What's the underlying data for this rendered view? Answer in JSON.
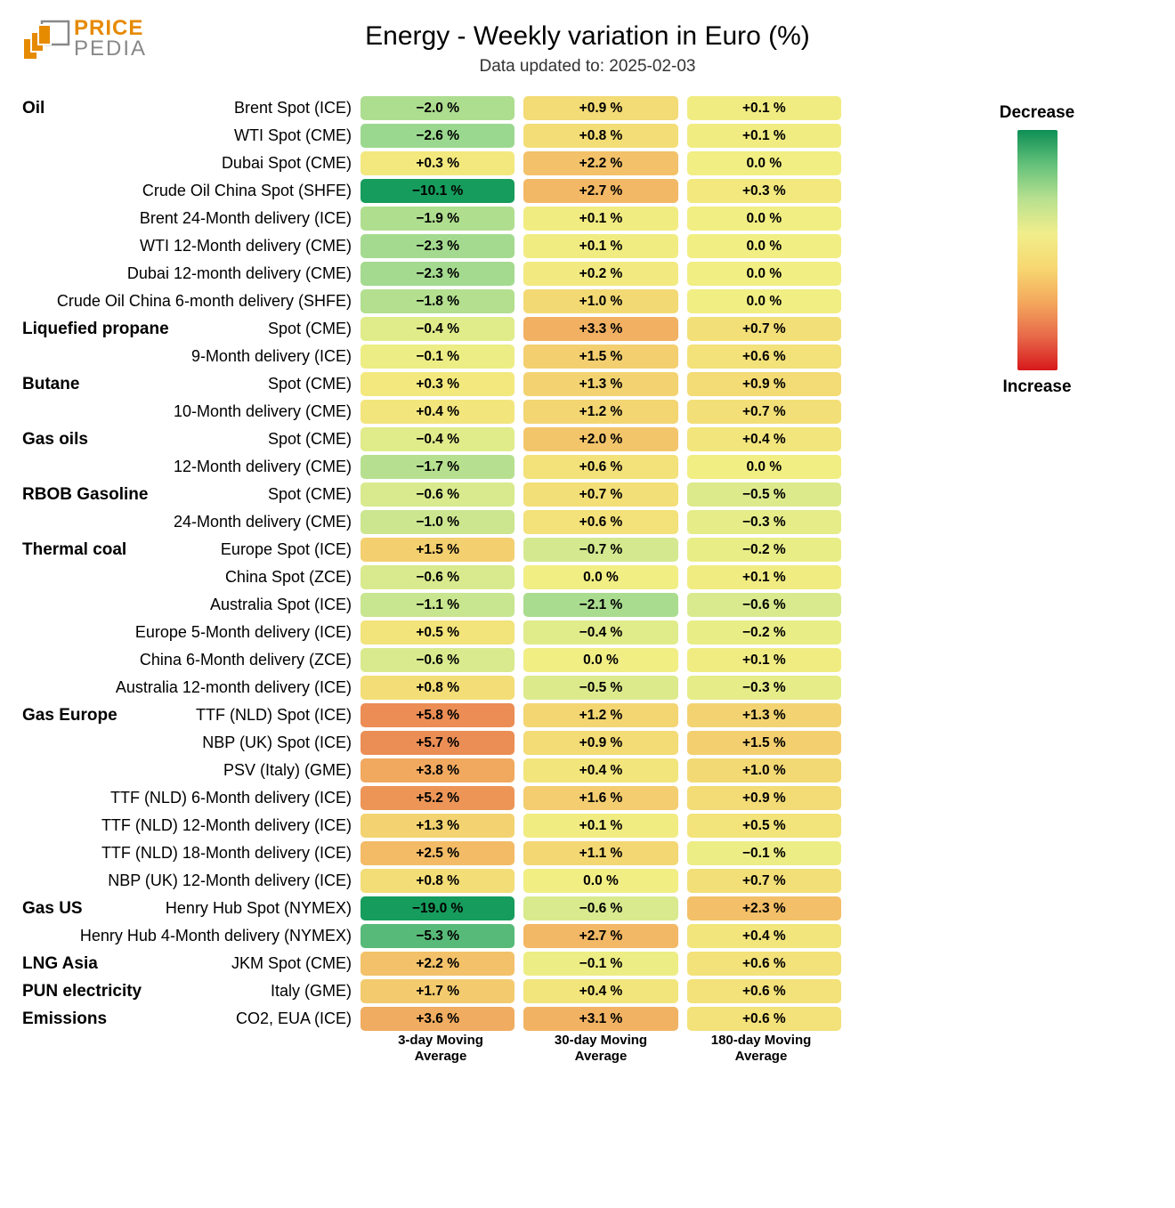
{
  "logo": {
    "price": "PRICE",
    "pedia": "PEDIA"
  },
  "title": "Energy - Weekly variation in Euro (%)",
  "subtitle": "Data updated to: 2025-02-03",
  "columns": [
    {
      "line1": "3-day Moving",
      "line2": "Average"
    },
    {
      "line1": "30-day Moving",
      "line2": "Average"
    },
    {
      "line1": "180-day Moving",
      "line2": "Average"
    }
  ],
  "legend": {
    "top": "Decrease",
    "bottom": "Increase",
    "gradient_stops": [
      "#0e8f55",
      "#64c17a",
      "#b7e08f",
      "#f0ee8b",
      "#f7d871",
      "#f4a95d",
      "#e86a4a",
      "#d7191c"
    ]
  },
  "colors": {
    "scale_min_value": -19.0,
    "scale_mid_value": 0.0,
    "scale_max_value": 6.0,
    "neg_strong": "#169c5c",
    "neg_mid": "#8fd48f",
    "neg_weak": "#d4e98f",
    "zero": "#f1ee83",
    "pos_weak": "#f3df77",
    "pos_mid": "#f3bb66",
    "pos_strong": "#ea8a53"
  },
  "groups": [
    {
      "name": "Oil",
      "rows": [
        {
          "label": "Brent Spot (ICE)",
          "v": [
            -2.0,
            0.9,
            0.1
          ]
        },
        {
          "label": "WTI Spot (CME)",
          "v": [
            -2.6,
            0.8,
            0.1
          ]
        },
        {
          "label": "Dubai Spot (CME)",
          "v": [
            0.3,
            2.2,
            0.0
          ]
        },
        {
          "label": "Crude Oil China Spot (SHFE)",
          "v": [
            -10.1,
            2.7,
            0.3
          ]
        },
        {
          "label": "Brent 24-Month delivery (ICE)",
          "v": [
            -1.9,
            0.1,
            0.0
          ]
        },
        {
          "label": "WTI 12-Month delivery (CME)",
          "v": [
            -2.3,
            0.1,
            0.0
          ]
        },
        {
          "label": "Dubai 12-month delivery (CME)",
          "v": [
            -2.3,
            0.2,
            0.0
          ]
        },
        {
          "label": "Crude Oil China 6-month delivery (SHFE)",
          "v": [
            -1.8,
            1.0,
            0.0
          ]
        }
      ]
    },
    {
      "name": "Liquefied propane",
      "rows": [
        {
          "label": "Spot (CME)",
          "v": [
            -0.4,
            3.3,
            0.7
          ]
        },
        {
          "label": "9-Month delivery (ICE)",
          "v": [
            -0.1,
            1.5,
            0.6
          ]
        }
      ]
    },
    {
      "name": "Butane",
      "rows": [
        {
          "label": "Spot (CME)",
          "v": [
            0.3,
            1.3,
            0.9
          ]
        },
        {
          "label": "10-Month delivery (CME)",
          "v": [
            0.4,
            1.2,
            0.7
          ]
        }
      ]
    },
    {
      "name": "Gas oils",
      "rows": [
        {
          "label": "Spot (CME)",
          "v": [
            -0.4,
            2.0,
            0.4
          ]
        },
        {
          "label": "12-Month delivery (CME)",
          "v": [
            -1.7,
            0.6,
            0.0
          ]
        }
      ]
    },
    {
      "name": "RBOB Gasoline",
      "rows": [
        {
          "label": "Spot (CME)",
          "v": [
            -0.6,
            0.7,
            -0.5
          ]
        },
        {
          "label": "24-Month delivery (CME)",
          "v": [
            -1.0,
            0.6,
            -0.3
          ]
        }
      ]
    },
    {
      "name": "Thermal coal",
      "rows": [
        {
          "label": "Europe Spot (ICE)",
          "v": [
            1.5,
            -0.7,
            -0.2
          ]
        },
        {
          "label": "China Spot (ZCE)",
          "v": [
            -0.6,
            0.0,
            0.1
          ]
        },
        {
          "label": "Australia Spot (ICE)",
          "v": [
            -1.1,
            -2.1,
            -0.6
          ]
        },
        {
          "label": "Europe 5-Month delivery (ICE)",
          "v": [
            0.5,
            -0.4,
            -0.2
          ]
        },
        {
          "label": "China 6-Month delivery (ZCE)",
          "v": [
            -0.6,
            0.0,
            0.1
          ]
        },
        {
          "label": "Australia 12-month delivery (ICE)",
          "v": [
            0.8,
            -0.5,
            -0.3
          ]
        }
      ]
    },
    {
      "name": "Gas Europe",
      "rows": [
        {
          "label": "TTF (NLD) Spot (ICE)",
          "v": [
            5.8,
            1.2,
            1.3
          ]
        },
        {
          "label": "NBP (UK) Spot (ICE)",
          "v": [
            5.7,
            0.9,
            1.5
          ]
        },
        {
          "label": "PSV (Italy) (GME)",
          "v": [
            3.8,
            0.4,
            1.0
          ]
        },
        {
          "label": "TTF (NLD) 6-Month delivery (ICE)",
          "v": [
            5.2,
            1.6,
            0.9
          ]
        },
        {
          "label": "TTF (NLD) 12-Month delivery (ICE)",
          "v": [
            1.3,
            0.1,
            0.5
          ]
        },
        {
          "label": "TTF (NLD) 18-Month delivery (ICE)",
          "v": [
            2.5,
            1.1,
            -0.1
          ]
        },
        {
          "label": "NBP (UK) 12-Month delivery (ICE)",
          "v": [
            0.8,
            0.0,
            0.7
          ]
        }
      ]
    },
    {
      "name": "Gas US",
      "rows": [
        {
          "label": "Henry Hub Spot (NYMEX)",
          "v": [
            -19.0,
            -0.6,
            2.3
          ]
        },
        {
          "label": "Henry Hub 4-Month delivery (NYMEX)",
          "v": [
            -5.3,
            2.7,
            0.4
          ]
        }
      ]
    },
    {
      "name": "LNG Asia",
      "rows": [
        {
          "label": "JKM Spot (CME)",
          "v": [
            2.2,
            -0.1,
            0.6
          ]
        }
      ]
    },
    {
      "name": "PUN electricity",
      "rows": [
        {
          "label": "Italy (GME)",
          "v": [
            1.7,
            0.4,
            0.6
          ]
        }
      ]
    },
    {
      "name": "Emissions",
      "rows": [
        {
          "label": "CO2, EUA (ICE)",
          "v": [
            3.6,
            3.1,
            0.6
          ]
        }
      ]
    }
  ]
}
